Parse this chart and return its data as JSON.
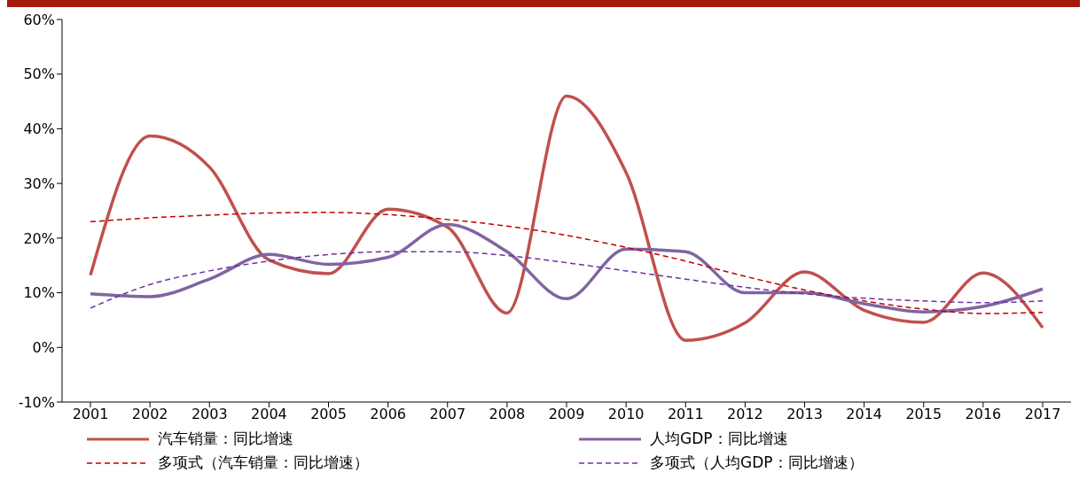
{
  "chart_data": {
    "type": "line",
    "categories": [
      "2001",
      "2002",
      "2003",
      "2004",
      "2005",
      "2006",
      "2007",
      "2008",
      "2009",
      "2010",
      "2011",
      "2012",
      "2013",
      "2014",
      "2015",
      "2016",
      "2017"
    ],
    "series": [
      {
        "name": "汽车销量：同比增速",
        "color": "#c0504d",
        "line_style": "solid",
        "values": [
          13.2,
          38.7,
          33,
          16,
          13.5,
          25.3,
          22,
          6.3,
          46,
          32,
          1.3,
          4.5,
          13.8,
          6.8,
          4.6,
          13.6,
          3.6
        ]
      },
      {
        "name": "人均GDP：同比增速",
        "color": "#8064a2",
        "line_style": "solid",
        "values": [
          9.8,
          9.3,
          12.5,
          17,
          15.2,
          16.5,
          22.5,
          17.5,
          8.9,
          18,
          17.5,
          10,
          10,
          8,
          6.5,
          7.5,
          10.7
        ]
      },
      {
        "name": "多项式（汽车销量：同比增速）",
        "color": "#c00000",
        "line_style": "dashed",
        "values": [
          23,
          23.7,
          24.2,
          24.6,
          24.7,
          24.3,
          23.4,
          22.2,
          20.5,
          18.3,
          15.8,
          13,
          10.5,
          8.5,
          7,
          6.2,
          6.4
        ]
      },
      {
        "name": "多项式（人均GDP：同比增速）",
        "color": "#7030a0",
        "line_style": "dashed",
        "values": [
          7.2,
          11.5,
          14,
          15.8,
          17,
          17.5,
          17.5,
          16.8,
          15.5,
          14,
          12.5,
          11,
          9.8,
          9,
          8.5,
          8.2,
          8.5
        ]
      }
    ],
    "ylim": [
      -10,
      60
    ],
    "yticks": [
      {
        "value": -10,
        "label": "-10%"
      },
      {
        "value": 0,
        "label": "0%"
      },
      {
        "value": 10,
        "label": "10%"
      },
      {
        "value": 20,
        "label": "20%"
      },
      {
        "value": 30,
        "label": "30%"
      },
      {
        "value": 40,
        "label": "40%"
      },
      {
        "value": 50,
        "label": "50%"
      },
      {
        "value": 60,
        "label": "60%"
      }
    ],
    "grid": false,
    "legend": "bottom",
    "marker": "none"
  }
}
